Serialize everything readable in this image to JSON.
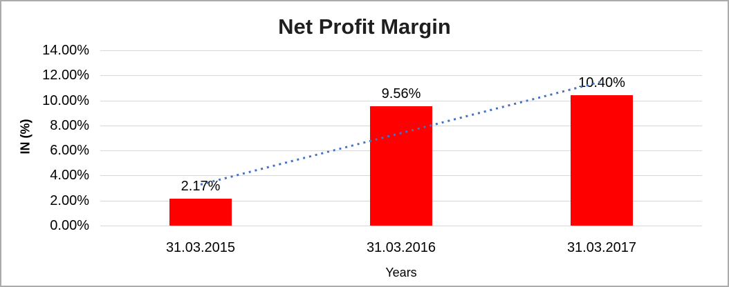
{
  "chart": {
    "title": "Net Profit Margin",
    "y_axis_title": "IN (%)",
    "x_axis_title": "Years"
  },
  "chart_data": {
    "type": "bar",
    "title": "Net Profit Margin",
    "categories": [
      "31.03.2015",
      "31.03.2016",
      "31.03.2017"
    ],
    "values": [
      2.17,
      9.56,
      10.4
    ],
    "data_labels": [
      "2.17%",
      "9.56%",
      "10.40%"
    ],
    "xlabel": "Years",
    "ylabel": "IN (%)",
    "ylim": [
      0,
      14
    ],
    "y_tick_step": 2,
    "y_tick_labels": [
      "14.00%",
      "12.00%",
      "10.00%",
      "8.00%",
      "6.00%",
      "4.00%",
      "2.00%",
      "0.00%"
    ],
    "grid": true,
    "legend": "none",
    "colors": {
      "bar": "#ff0000",
      "trendline": "#4472c4",
      "gridline": "#d6d6d6",
      "text": "#000000"
    },
    "trendline": {
      "type": "linear",
      "style": "dotted",
      "color": "#4472c4",
      "y_start_pct": 3.26,
      "y_end_pct": 11.49
    }
  }
}
